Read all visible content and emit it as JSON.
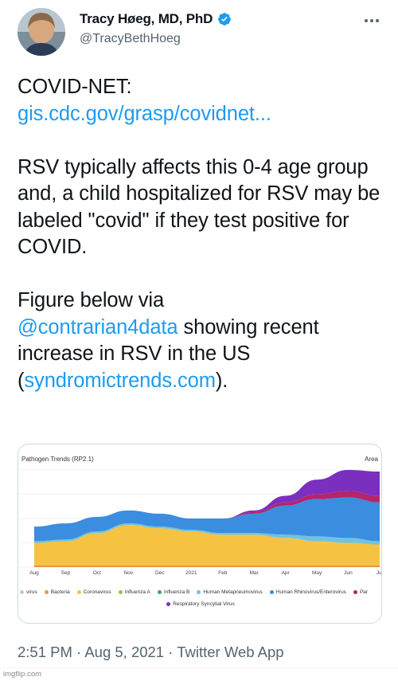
{
  "tweet": {
    "author_name": "Tracy Høeg, MD, PhD",
    "handle": "@TracyBethHoeg",
    "line_prefix": "COVID-NET:",
    "link_cdc": "gis.cdc.gov/grasp/covidnet...",
    "para2": "RSV typically affects this 0-4 age group and, a child hospitalized for RSV may be labeled \"covid\" if they test positive for COVID.",
    "para3_a": "Figure below via",
    "mention": "@contrarian4data",
    "para3_b": " showing recent increase in RSV in the US",
    "paren_open": "(",
    "link_site": "syndromictrends.com",
    "paren_close": ").",
    "timestamp": "2:51 PM · Aug 5, 2021 · Twitter Web App"
  },
  "colors": {
    "link": "#1d9bf0",
    "verified": "#1d9bf0"
  },
  "icons": {
    "verified": "verified-badge-icon",
    "more": "more-options-icon"
  },
  "chart_data": {
    "type": "area",
    "title": "Pathogen Trends (RP2.1)",
    "corner_label": "Area",
    "x": [
      "Aug",
      "Sep",
      "Oct",
      "Nov",
      "Dec",
      "2021",
      "Feb",
      "Mar",
      "Apr",
      "May",
      "Jun",
      "Jul"
    ],
    "series": [
      {
        "name": "Bacteria",
        "color": "#e8944a",
        "values": [
          1,
          1,
          1,
          1,
          1,
          1,
          1,
          1,
          1,
          1,
          1,
          1
        ]
      },
      {
        "name": "Coronavirus",
        "color": "#f5c341",
        "values": [
          14,
          15,
          20,
          25,
          23,
          21,
          19,
          19,
          17,
          15,
          14,
          13
        ]
      },
      {
        "name": "Influenza A",
        "color": "#8fc454",
        "values": [
          0,
          0,
          0,
          0,
          0,
          0,
          0,
          0,
          0,
          0,
          0,
          0
        ]
      },
      {
        "name": "Influenza B",
        "color": "#3aa655",
        "values": [
          0,
          0,
          0,
          0,
          0,
          0,
          0,
          0,
          0,
          0,
          0,
          0
        ]
      },
      {
        "name": "Human Metapneumovirus",
        "color": "#6ec3e0",
        "values": [
          1,
          1,
          1,
          1,
          1,
          1,
          1,
          1,
          2,
          3,
          3,
          2
        ]
      },
      {
        "name": "Human Rhinovirus/Enterovirus",
        "color": "#3b8de0",
        "values": [
          9,
          10,
          9,
          8,
          8,
          7,
          9,
          12,
          18,
          23,
          25,
          24
        ]
      },
      {
        "name": "Par",
        "color": "#b3266b",
        "values": [
          0,
          0,
          0,
          0,
          0,
          0,
          0,
          1,
          2,
          3,
          4,
          4
        ]
      },
      {
        "name": "Respiratory Syncytial Virus",
        "color": "#7b2fbf",
        "values": [
          0,
          0,
          0,
          0,
          0,
          0,
          0,
          1,
          4,
          9,
          13,
          15
        ]
      }
    ],
    "legend_row1": [
      {
        "name": "virus",
        "color": "#c7c7c7"
      },
      {
        "name": "Bacteria",
        "color": "#e8944a"
      },
      {
        "name": "Coronavirus",
        "color": "#f5c341"
      },
      {
        "name": "Influenza A",
        "color": "#8fc454"
      },
      {
        "name": "Influenza B",
        "color": "#3aa655"
      },
      {
        "name": "Human Metapneumovirus",
        "color": "#6ec3e0"
      },
      {
        "name": "Human Rhinovirus/Enterovirus",
        "color": "#3b8de0"
      },
      {
        "name": "Par",
        "color": "#b3266b"
      }
    ],
    "legend_row2": [
      {
        "name": "Respiratory Syncytial Virus",
        "color": "#7b2fbf"
      }
    ],
    "ylim": [
      0,
      60
    ],
    "grid": true,
    "legend_position": "bottom"
  },
  "watermark": "imgflip.com"
}
